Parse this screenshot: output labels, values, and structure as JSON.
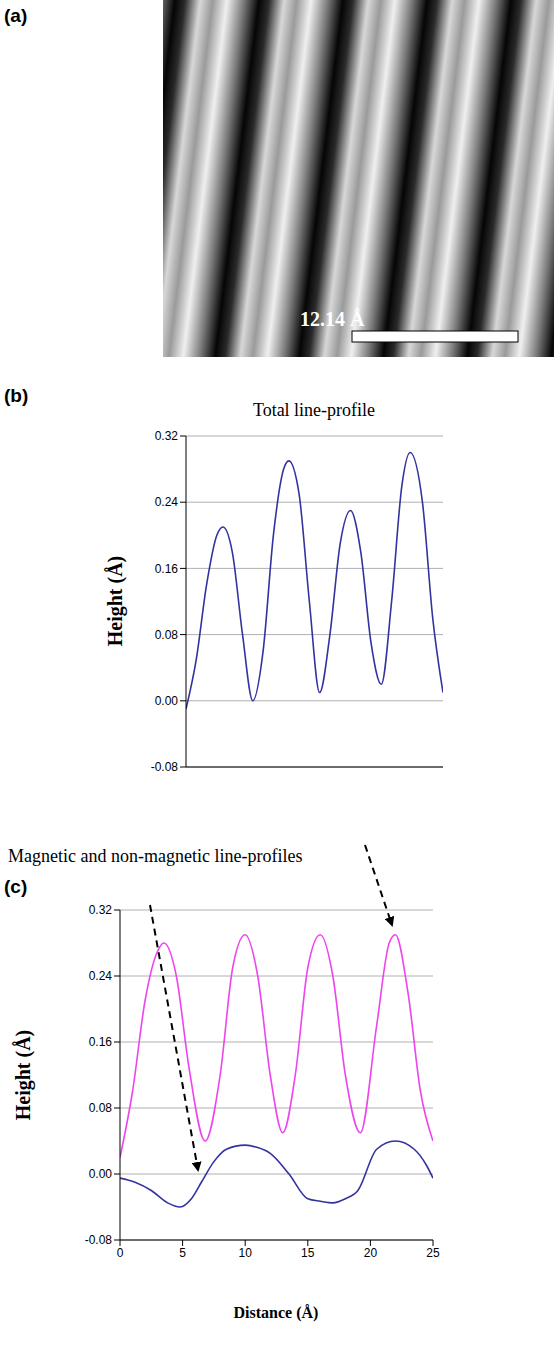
{
  "figure": {
    "panel_a": {
      "panel_label": "(a)",
      "scale_bar_label": "12.14 Å"
    }
  },
  "chart_data": [
    {
      "type": "line",
      "panel_label": "(b)",
      "title": "Total line-profile",
      "y_label": "Height (Å)",
      "x": [
        0,
        1,
        2,
        3,
        3.6,
        4.5,
        5.5,
        6.5,
        7.5,
        8.5,
        9.5,
        10,
        11,
        12,
        13,
        14,
        15,
        16,
        17,
        18,
        19,
        20,
        21,
        21.8,
        23,
        24,
        25
      ],
      "values": [
        -0.01,
        0.05,
        0.14,
        0.2,
        0.21,
        0.18,
        0.08,
        0.0,
        0.06,
        0.2,
        0.28,
        0.29,
        0.25,
        0.12,
        0.01,
        0.08,
        0.19,
        0.23,
        0.18,
        0.07,
        0.02,
        0.12,
        0.26,
        0.3,
        0.24,
        0.1,
        0.01
      ],
      "color": "#3333a0",
      "xlim": [
        0,
        25
      ],
      "ylim": [
        -0.08,
        0.32
      ],
      "yticks": [
        -0.08,
        {
          "value": 0,
          "label": "0.00"
        },
        0.08,
        0.16,
        0.24,
        0.32
      ],
      "grid": true,
      "tick_labels": "y"
    },
    {
      "type": "line",
      "panel_label": "(c)",
      "title": "Magnetic and non-magnetic line-profiles",
      "x_label": "Distance (Å)",
      "y_label": "Height (Å)",
      "series": [
        {
          "color": "#ee44ee",
          "x": [
            0,
            1,
            2,
            3,
            3.5,
            4.5,
            5.5,
            6.8,
            8,
            9,
            10,
            11,
            12,
            13,
            14,
            15,
            16,
            17,
            18,
            19.2,
            20.5,
            21.5,
            22,
            23,
            24,
            25
          ],
          "values": [
            0.02,
            0.1,
            0.21,
            0.27,
            0.28,
            0.24,
            0.13,
            0.04,
            0.12,
            0.25,
            0.29,
            0.24,
            0.12,
            0.05,
            0.12,
            0.25,
            0.29,
            0.24,
            0.12,
            0.05,
            0.18,
            0.28,
            0.29,
            0.22,
            0.1,
            0.04
          ]
        },
        {
          "color": "#3333a0",
          "x": [
            0,
            1.2,
            2.5,
            3.8,
            4.8,
            5.7,
            6.5,
            7.5,
            8.5,
            10,
            11,
            12,
            13.5,
            15,
            16,
            17,
            18,
            19,
            20.5,
            22,
            23.5,
            24.5,
            25
          ],
          "values": [
            -0.005,
            -0.01,
            -0.02,
            -0.035,
            -0.04,
            -0.03,
            -0.01,
            0.015,
            0.03,
            0.035,
            0.032,
            0.025,
            0.0,
            -0.03,
            -0.033,
            -0.035,
            -0.03,
            -0.02,
            0.03,
            0.04,
            0.03,
            0.01,
            -0.005
          ]
        }
      ],
      "xlim": [
        0,
        25
      ],
      "xticks": [
        0,
        5,
        10,
        15,
        20,
        25
      ],
      "ylim": [
        -0.08,
        0.32
      ],
      "yticks": [
        -0.08,
        {
          "value": 0,
          "label": "0.00"
        },
        0.08,
        0.16,
        0.24,
        0.32
      ],
      "grid": true
    }
  ]
}
